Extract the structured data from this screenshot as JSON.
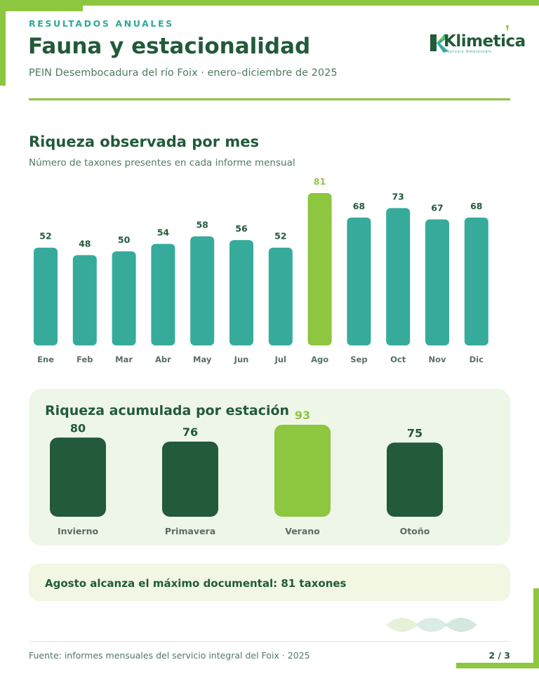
{
  "header": {
    "kicker": "RESULTADOS ANUALES",
    "title": "Fauna y estacionalidad",
    "subtitle": "PEIN Desembocadura del río Foix · enero–diciembre de 2025"
  },
  "logo": {
    "word": "Klimetica",
    "tagline": "Serveis Ambientals"
  },
  "colors": {
    "accent": "#8dc63f",
    "teal": "#36ab9c",
    "dark_green": "#225a3a",
    "panel": "#eef6e7"
  },
  "monthly": {
    "title": "Riqueza observada por mes",
    "subtitle": "Número de taxones presentes en cada informe mensual"
  },
  "seasonal": {
    "title": "Riqueza acumulada por estación"
  },
  "highlight": {
    "text": "Agosto alcanza el máximo documental: 81 taxones"
  },
  "footer": {
    "source": "Fuente: informes mensuales del servicio integral del Foix · 2025",
    "page": "2 / 3"
  },
  "chart_data": [
    {
      "type": "bar",
      "title": "Riqueza observada por mes",
      "subtitle": "Número de taxones presentes en cada informe mensual",
      "categories": [
        "Ene",
        "Feb",
        "Mar",
        "Abr",
        "May",
        "Jun",
        "Jul",
        "Ago",
        "Sep",
        "Oct",
        "Nov",
        "Dic"
      ],
      "values": [
        52,
        48,
        50,
        54,
        58,
        56,
        52,
        81,
        68,
        73,
        67,
        68
      ],
      "highlight_index": 7,
      "bar_color": "#36ab9c",
      "highlight_color": "#8dc63f",
      "label_color": "#225a3a",
      "ylim": [
        0,
        81
      ],
      "grid": false,
      "legend": "none"
    },
    {
      "type": "bar",
      "title": "Riqueza acumulada por estación",
      "categories": [
        "Invierno",
        "Primavera",
        "Verano",
        "Otoño"
      ],
      "values": [
        80,
        76,
        93,
        75
      ],
      "highlight_index": 2,
      "bar_color": "#225a3a",
      "highlight_color": "#8dc63f",
      "label_color": "#225a3a",
      "grid": false,
      "legend": "none"
    }
  ]
}
